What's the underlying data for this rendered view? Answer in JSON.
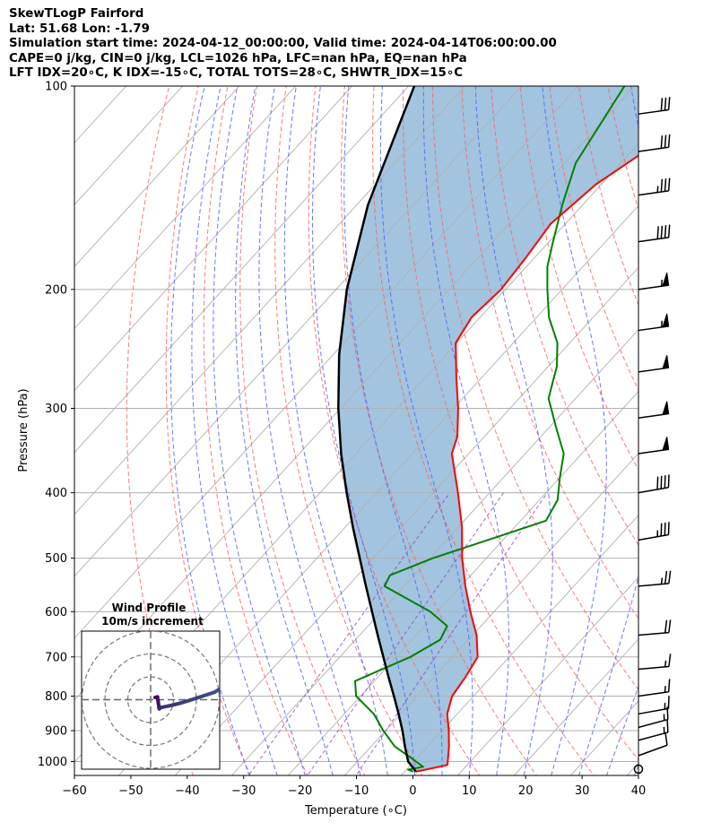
{
  "header": {
    "line1": "SkewTLogP Fairford",
    "line2": "Lat: 51.68   Lon: -1.79",
    "line3": "Simulation start time: 2024-04-12_00:00:00, Valid time: 2024-04-14T06:00:00.00",
    "line4": "CAPE=0 j/kg, CIN=0 j/kg, LCL=1026 hPa, LFC=nan hPa, EQ=nan hPa",
    "line5": "LFT IDX=20∘C, K IDX=-15∘C, TOTAL TOTS=28∘C, SHWTR_IDX=15∘C"
  },
  "chart_data": {
    "type": "skewt",
    "xlabel": "Temperature (∘C)",
    "ylabel": "Pressure (hPa)",
    "xlim": [
      -60,
      40
    ],
    "ylim": [
      1050,
      100
    ],
    "x_ticks": [
      -60,
      -50,
      -40,
      -30,
      -20,
      -10,
      0,
      10,
      20,
      30,
      40
    ],
    "x_tick_labels": [
      "−60",
      "−50",
      "−40",
      "−30",
      "−20",
      "−10",
      "0",
      "10",
      "20",
      "30",
      "40"
    ],
    "y_ticks": [
      1000,
      900,
      800,
      700,
      600,
      500,
      400,
      300,
      200,
      100
    ],
    "y_tick_labels": [
      "1000",
      "900",
      "800",
      "700",
      "600",
      "500",
      "400",
      "300",
      "200",
      "100"
    ],
    "colors": {
      "temperature": "#ff0000",
      "dewpoint": "#008000",
      "parcel": "#000000",
      "fill": "#a2c4df",
      "isotherm": "#b0b0b0",
      "dry_adiabat": "#ff6060",
      "moist_adiabat": "#5060ff",
      "mixing_ratio": "#9040c0"
    },
    "temperature": {
      "name": "Temperature",
      "pressure": [
        1035,
        1012,
        1000,
        950,
        900,
        850,
        800,
        750,
        700,
        650,
        600,
        550,
        500,
        450,
        400,
        350,
        330,
        300,
        270,
        240,
        220,
        200,
        180,
        160,
        140,
        120,
        100
      ],
      "values": [
        2.0,
        6.5,
        6.0,
        3.8,
        1.2,
        -1.8,
        -3.8,
        -4.5,
        -5.6,
        -9.3,
        -14.2,
        -19.2,
        -24.3,
        -29.3,
        -35.6,
        -43.0,
        -44.8,
        -49.2,
        -54.5,
        -60.2,
        -61.5,
        -60.8,
        -61.5,
        -62.6,
        -61.0,
        -56.5,
        -53.0
      ]
    },
    "dewpoint": {
      "name": "Dewpoint",
      "pressure": [
        1035,
        1028,
        1018,
        990,
        950,
        900,
        850,
        800,
        760,
        700,
        660,
        630,
        600,
        550,
        530,
        500,
        470,
        440,
        410,
        380,
        350,
        320,
        290,
        260,
        240,
        220,
        200,
        185,
        170,
        150,
        130,
        100
      ],
      "values": [
        1.5,
        0.3,
        2.5,
        -0.8,
        -5.8,
        -10.4,
        -14.8,
        -20.8,
        -23.4,
        -17.5,
        -15.0,
        -16.0,
        -21.3,
        -33.5,
        -34.3,
        -29.5,
        -22.7,
        -15.5,
        -16.8,
        -20.0,
        -23.2,
        -28.8,
        -34.8,
        -38.5,
        -42.2,
        -47.8,
        -52.6,
        -56.3,
        -59.3,
        -63.6,
        -68.0,
        -71.8
      ]
    },
    "parcel": {
      "name": "Parcel",
      "pressure": [
        1035,
        1000,
        950,
        900,
        850,
        800,
        750,
        700,
        650,
        600,
        550,
        500,
        450,
        400,
        350,
        300,
        250,
        200,
        150,
        100
      ],
      "values": [
        2.0,
        -1.0,
        -4.0,
        -7.0,
        -10.4,
        -14.1,
        -18.1,
        -22.3,
        -26.8,
        -31.6,
        -36.8,
        -42.4,
        -48.6,
        -55.3,
        -62.6,
        -70.4,
        -78.9,
        -88.1,
        -98.0,
        -109.0
      ]
    },
    "wind_barbs": [
      {
        "pressure": 1026,
        "speed_kt": 0,
        "direction_deg": 0
      },
      {
        "pressure": 980,
        "speed_kt": 10,
        "direction_deg": 250
      },
      {
        "pressure": 930,
        "speed_kt": 15,
        "direction_deg": 255
      },
      {
        "pressure": 890,
        "speed_kt": 15,
        "direction_deg": 255
      },
      {
        "pressure": 850,
        "speed_kt": 15,
        "direction_deg": 260
      },
      {
        "pressure": 800,
        "speed_kt": 15,
        "direction_deg": 262
      },
      {
        "pressure": 730,
        "speed_kt": 15,
        "direction_deg": 265
      },
      {
        "pressure": 650,
        "speed_kt": 20,
        "direction_deg": 265
      },
      {
        "pressure": 550,
        "speed_kt": 25,
        "direction_deg": 265
      },
      {
        "pressure": 470,
        "speed_kt": 35,
        "direction_deg": 260
      },
      {
        "pressure": 400,
        "speed_kt": 40,
        "direction_deg": 260
      },
      {
        "pressure": 350,
        "speed_kt": 50,
        "direction_deg": 262
      },
      {
        "pressure": 310,
        "speed_kt": 50,
        "direction_deg": 262
      },
      {
        "pressure": 265,
        "speed_kt": 50,
        "direction_deg": 262
      },
      {
        "pressure": 230,
        "speed_kt": 55,
        "direction_deg": 262
      },
      {
        "pressure": 200,
        "speed_kt": 55,
        "direction_deg": 262
      },
      {
        "pressure": 170,
        "speed_kt": 40,
        "direction_deg": 262
      },
      {
        "pressure": 145,
        "speed_kt": 35,
        "direction_deg": 262
      },
      {
        "pressure": 125,
        "speed_kt": 30,
        "direction_deg": 262
      },
      {
        "pressure": 110,
        "speed_kt": 30,
        "direction_deg": 262
      }
    ],
    "hodograph": {
      "title_line1": "Wind Profile",
      "title_line2": "10m/s increment",
      "ring_increment_ms": 10,
      "rings": 3,
      "u": [
        2.0,
        3.0,
        3.0,
        3.2,
        3.4,
        3.6,
        3.6,
        3.8,
        4.2,
        5.0,
        6.5,
        9.0,
        13.0,
        17.0,
        21.0,
        25.0,
        28.0,
        30.0
      ],
      "v": [
        1.0,
        1.2,
        0.6,
        -0.3,
        -1.6,
        -2.8,
        -3.5,
        -4.0,
        -3.6,
        -3.3,
        -3.0,
        -2.5,
        -1.5,
        -0.3,
        1.0,
        2.3,
        3.3,
        4.5
      ]
    }
  }
}
